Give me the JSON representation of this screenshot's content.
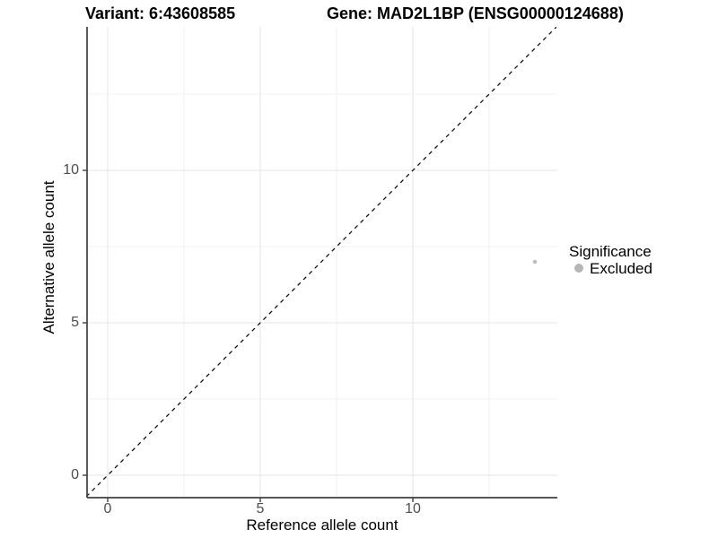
{
  "header": {
    "variant_title": "Variant: 6:43608585",
    "gene_title": "Gene: MAD2L1BP (ENSG00000124688)"
  },
  "chart_data": {
    "type": "scatter",
    "xlabel": "Reference allele count",
    "ylabel": "Alternative allele count",
    "x_ticks": [
      0,
      5,
      10
    ],
    "y_ticks": [
      0,
      5,
      10
    ],
    "x_tick_labels": [
      "0",
      "5",
      "10"
    ],
    "y_tick_labels": [
      "0",
      "5",
      "10"
    ],
    "x_minor_ticks": [
      2.5,
      7.5,
      12.5
    ],
    "y_minor_ticks": [
      2.5,
      7.5,
      12.5
    ],
    "xlim": [
      -0.7,
      14.7
    ],
    "ylim": [
      -0.74,
      14.7
    ],
    "grid": "major+minor",
    "points": [
      {
        "x": 14,
        "y": 7,
        "group": "Excluded"
      }
    ],
    "identity_line": {
      "slope": 1,
      "intercept": 0,
      "style": "dashed",
      "color": "#000000"
    },
    "legend": {
      "title": "Significance",
      "position": "right",
      "entries": [
        {
          "label": "Excluded",
          "color": "#bebebe"
        }
      ]
    }
  },
  "colors": {
    "background": "#ffffff",
    "point": "#bebebe",
    "legend_key": "#b5b5b5",
    "grid_major": "#e4e4e4",
    "grid_minor": "#f0f0f0",
    "axis_line": "#404040",
    "tick_text": "#4d4d4d",
    "dashed_line": "#000000"
  }
}
